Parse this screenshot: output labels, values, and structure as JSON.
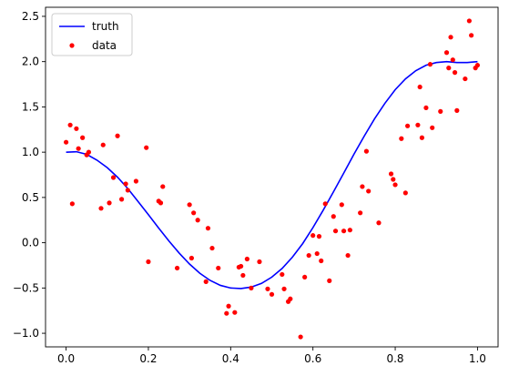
{
  "chart_data": {
    "type": "scatter",
    "title": "",
    "xlabel": "",
    "ylabel": "",
    "xlim": [
      -0.05,
      1.05
    ],
    "ylim": [
      -1.15,
      2.6
    ],
    "grid": false,
    "legend_position": "top-left",
    "x_ticks": [
      0.0,
      0.2,
      0.4,
      0.6,
      0.8,
      1.0
    ],
    "x_tick_labels": [
      "0.0",
      "0.2",
      "0.4",
      "0.6",
      "0.8",
      "1.0"
    ],
    "y_ticks": [
      -1.0,
      -0.5,
      0.0,
      0.5,
      1.0,
      1.5,
      2.0,
      2.5
    ],
    "y_tick_labels": [
      "−1.0",
      "−0.5",
      "0.0",
      "0.5",
      "1.0",
      "1.5",
      "2.0",
      "2.5"
    ],
    "series": [
      {
        "name": "truth",
        "kind": "line",
        "color": "#0000ff",
        "formula": "cos(2*pi*x) + 2*x^2 ... smooth curve",
        "x": [
          0.0,
          0.025,
          0.05,
          0.075,
          0.1,
          0.125,
          0.15,
          0.175,
          0.2,
          0.225,
          0.25,
          0.275,
          0.3,
          0.325,
          0.35,
          0.375,
          0.4,
          0.425,
          0.45,
          0.475,
          0.5,
          0.525,
          0.55,
          0.575,
          0.6,
          0.625,
          0.65,
          0.675,
          0.7,
          0.725,
          0.75,
          0.775,
          0.8,
          0.825,
          0.85,
          0.875,
          0.9,
          0.925,
          0.95,
          0.975,
          1.0
        ],
        "y": [
          1.0,
          1.005,
          0.976,
          0.912,
          0.829,
          0.724,
          0.598,
          0.455,
          0.31,
          0.162,
          0.019,
          -0.115,
          -0.235,
          -0.337,
          -0.416,
          -0.471,
          -0.5,
          -0.506,
          -0.49,
          -0.449,
          -0.38,
          -0.284,
          -0.16,
          -0.01,
          0.167,
          0.36,
          0.563,
          0.77,
          0.98,
          1.18,
          1.37,
          1.54,
          1.69,
          1.81,
          1.9,
          1.96,
          1.99,
          2.0,
          1.99,
          1.99,
          2.0
        ]
      },
      {
        "name": "data",
        "kind": "points",
        "color": "#ff0000",
        "x": [
          0.0,
          0.01,
          0.015,
          0.025,
          0.03,
          0.04,
          0.05,
          0.055,
          0.085,
          0.09,
          0.105,
          0.115,
          0.125,
          0.135,
          0.145,
          0.15,
          0.17,
          0.195,
          0.2,
          0.225,
          0.23,
          0.235,
          0.27,
          0.3,
          0.305,
          0.31,
          0.32,
          0.34,
          0.345,
          0.355,
          0.37,
          0.39,
          0.395,
          0.41,
          0.42,
          0.425,
          0.43,
          0.44,
          0.45,
          0.47,
          0.49,
          0.5,
          0.525,
          0.53,
          0.54,
          0.545,
          0.57,
          0.58,
          0.59,
          0.6,
          0.61,
          0.615,
          0.62,
          0.63,
          0.64,
          0.65,
          0.655,
          0.67,
          0.675,
          0.685,
          0.69,
          0.715,
          0.72,
          0.73,
          0.735,
          0.76,
          0.79,
          0.795,
          0.8,
          0.815,
          0.825,
          0.83,
          0.855,
          0.86,
          0.865,
          0.875,
          0.885,
          0.89,
          0.91,
          0.925,
          0.93,
          0.935,
          0.94,
          0.945,
          0.95,
          0.97,
          0.98,
          0.985,
          0.995,
          1.0
        ],
        "y": [
          1.11,
          1.3,
          0.43,
          1.26,
          1.04,
          1.16,
          0.97,
          1.0,
          0.38,
          1.08,
          0.44,
          0.72,
          1.18,
          0.48,
          0.65,
          0.58,
          0.68,
          1.05,
          -0.21,
          0.46,
          0.44,
          0.62,
          -0.28,
          0.42,
          -0.17,
          0.33,
          0.25,
          -0.43,
          0.16,
          -0.06,
          -0.28,
          -0.78,
          -0.7,
          -0.77,
          -0.27,
          -0.26,
          -0.36,
          -0.18,
          -0.5,
          -0.21,
          -0.51,
          -0.57,
          -0.35,
          -0.51,
          -0.65,
          -0.62,
          -1.04,
          -0.38,
          -0.14,
          0.08,
          -0.12,
          0.07,
          -0.2,
          0.43,
          -0.42,
          0.29,
          0.13,
          0.42,
          0.13,
          -0.14,
          0.14,
          0.33,
          0.62,
          1.01,
          0.57,
          0.22,
          0.76,
          0.7,
          0.64,
          1.15,
          0.55,
          1.29,
          1.3,
          1.72,
          1.16,
          1.49,
          1.97,
          1.27,
          1.45,
          2.1,
          1.93,
          2.27,
          2.02,
          1.88,
          1.46,
          1.81,
          2.45,
          2.29,
          1.93,
          1.96
        ]
      }
    ]
  }
}
